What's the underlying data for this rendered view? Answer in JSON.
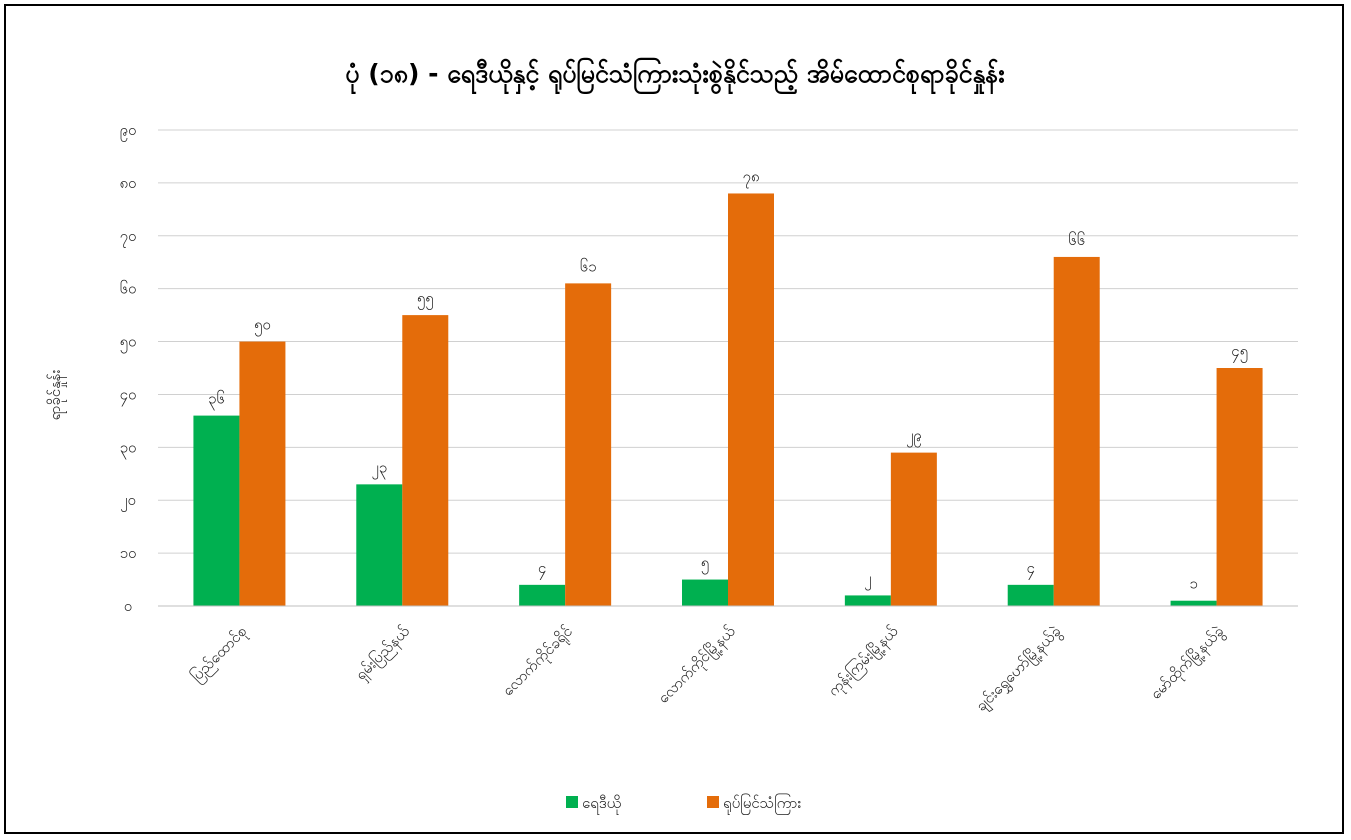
{
  "chart_data": {
    "type": "bar",
    "title": "ပုံ (၁၈) - ရေဒီယိုနှင့် ရုပ်မြင်သံကြားသုံးစွဲနိုင်သည့် အိမ်ထောင်စုရာခိုင်နှုန်း",
    "xlabel": "",
    "ylabel": "ရာခိုင်နှုန်း",
    "ylim": [
      0,
      90
    ],
    "yticks": [
      0,
      10,
      20,
      30,
      40,
      50,
      60,
      70,
      80,
      90
    ],
    "ytick_labels": [
      "၀",
      "၁၀",
      "၂၀",
      "၃၀",
      "၄၀",
      "၅၀",
      "၆၀",
      "၇၀",
      "၈၀",
      "၉၀"
    ],
    "grid": true,
    "legend_position": "bottom",
    "categories": [
      "ပြည်ထောင်စု",
      "ရှမ်းပြည်နယ်",
      "လောက်ကိုင်ခရိုင်",
      "လောက်ကိုင်မြို့နယ်",
      "ကုန်းကြမ်းမြို့နယ်",
      "ချင်းရွှေဟော်မြို့နယ်ခွဲ",
      "မော်ထိုက်မြို့နယ်ခွဲ"
    ],
    "series": [
      {
        "name": "ရေဒီယို",
        "color": "#00b050",
        "values": [
          36,
          23,
          4,
          5,
          2,
          4,
          1
        ],
        "labels": [
          "၃၆",
          "၂၃",
          "၄",
          "၅",
          "၂",
          "၄",
          "၁"
        ]
      },
      {
        "name": "ရုပ်မြင်သံကြား",
        "color": "#e46c0a",
        "values": [
          50,
          55,
          61,
          78,
          29,
          66,
          45
        ],
        "labels": [
          "၅၀",
          "၅၅",
          "၆၁",
          "၇၈",
          "၂၉",
          "၆၆",
          "၄၅"
        ]
      }
    ]
  }
}
